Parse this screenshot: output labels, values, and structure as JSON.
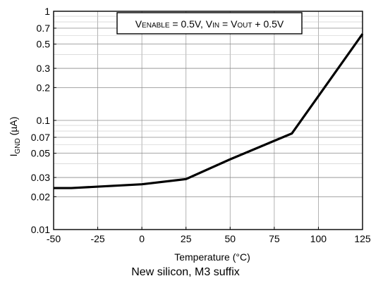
{
  "chart_data": {
    "type": "line",
    "title": "",
    "xlabel": "Temperature (°C)",
    "ylabel": {
      "main": "I",
      "sub": "GND",
      "unit": " (µA)"
    },
    "xlim": [
      -50,
      125
    ],
    "ylim": [
      0.01,
      1
    ],
    "yscale": "log",
    "grid": true,
    "x_ticks": [
      -50,
      -25,
      0,
      25,
      50,
      75,
      100,
      125
    ],
    "x_tick_labels": [
      "-50",
      "-25",
      "0",
      "25",
      "50",
      "75",
      "100",
      "125"
    ],
    "y_ticks": [
      0.01,
      0.02,
      0.03,
      0.05,
      0.07,
      0.1,
      0.2,
      0.3,
      0.5,
      0.7,
      1
    ],
    "y_tick_labels": [
      "0.01",
      "0.02",
      "0.03",
      "0.05",
      "0.07",
      "0.1",
      "0.2",
      "0.3",
      "0.5",
      "0.7",
      "1"
    ],
    "series": [
      {
        "x": [
          -50,
          -40,
          0,
          25,
          50,
          85,
          125
        ],
        "y": [
          0.024,
          0.024,
          0.026,
          0.029,
          0.044,
          0.076,
          0.62
        ]
      }
    ],
    "annotation": {
      "parts": [
        {
          "text": "V",
          "sub": false
        },
        {
          "text": "ENABLE",
          "sub": true
        },
        {
          "text": " = 0.5V, V",
          "sub": false
        },
        {
          "text": "IN",
          "sub": true
        },
        {
          "text": " = V",
          "sub": false
        },
        {
          "text": "OUT",
          "sub": true
        },
        {
          "text": " + 0.5V",
          "sub": false
        }
      ]
    }
  },
  "caption": "New silicon, M3 suffix"
}
